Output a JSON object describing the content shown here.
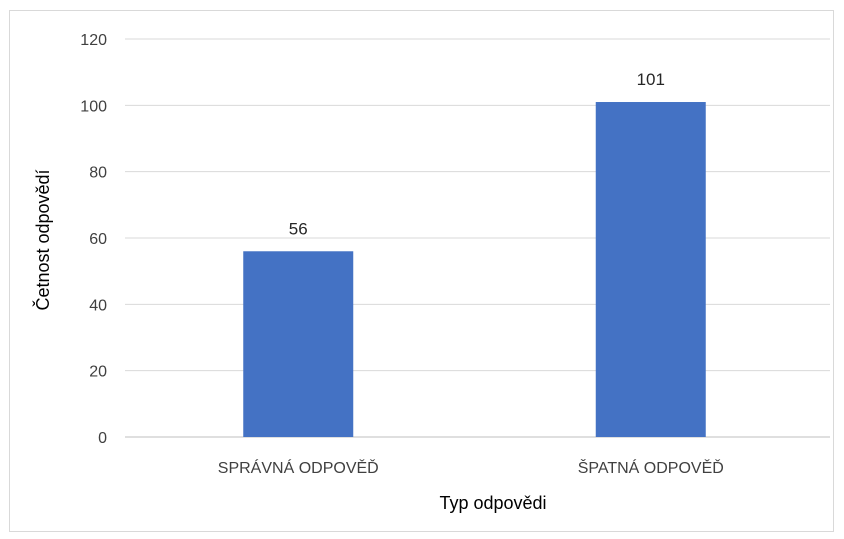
{
  "chart_data": {
    "type": "bar",
    "title": "",
    "categories": [
      "SPRÁVNÁ ODPOVĚĎ",
      "ŠPATNÁ ODPOVĚĎ"
    ],
    "series": [
      {
        "name": "",
        "values": [
          56,
          101
        ],
        "color": "#4472c4"
      }
    ],
    "data_labels": [
      "56",
      "101"
    ],
    "xlabel": "Typ odpovědi",
    "ylabel": "Četnost odpovědí",
    "ylim": [
      0,
      120
    ],
    "yticks": [
      "0",
      "20",
      "40",
      "60",
      "80",
      "100",
      "120"
    ],
    "grid": true,
    "legend": "none"
  }
}
